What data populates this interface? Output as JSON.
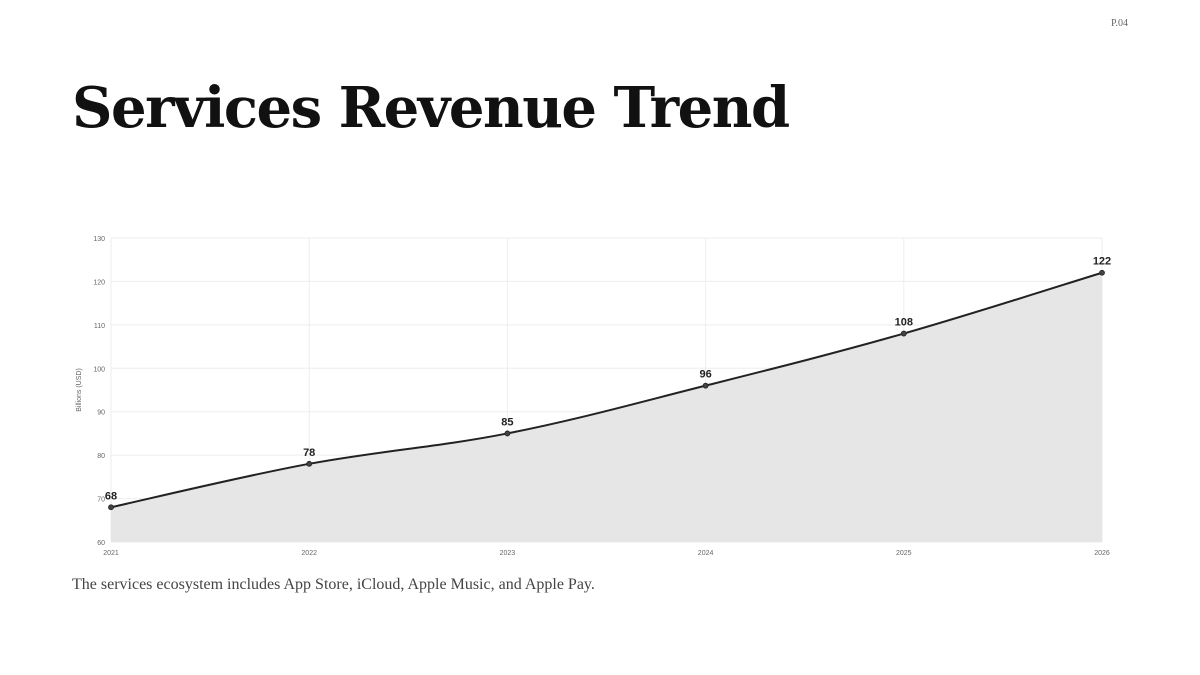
{
  "page": {
    "number": "P.04"
  },
  "slide": {
    "title": "Services Revenue Trend",
    "caption": "The services ecosystem includes App Store, iCloud, Apple Music, and Apple Pay."
  },
  "chart_data": {
    "type": "area",
    "x": [
      "2021",
      "2022",
      "2023",
      "2024",
      "2025",
      "2026"
    ],
    "series": [
      {
        "values": [
          68,
          78,
          85,
          96,
          108,
          122
        ]
      }
    ],
    "data_labels": [
      "68",
      "78",
      "85",
      "96",
      "108",
      "122"
    ],
    "ylabel": "Billions (USD)",
    "xlabel": "",
    "ylim": [
      60,
      130
    ],
    "yticks": [
      60,
      70,
      80,
      90,
      100,
      110,
      120,
      130
    ],
    "grid": true,
    "line_color": "#222222",
    "fill_color": "#e6e6e6",
    "grid_color": "#eeeeee"
  }
}
